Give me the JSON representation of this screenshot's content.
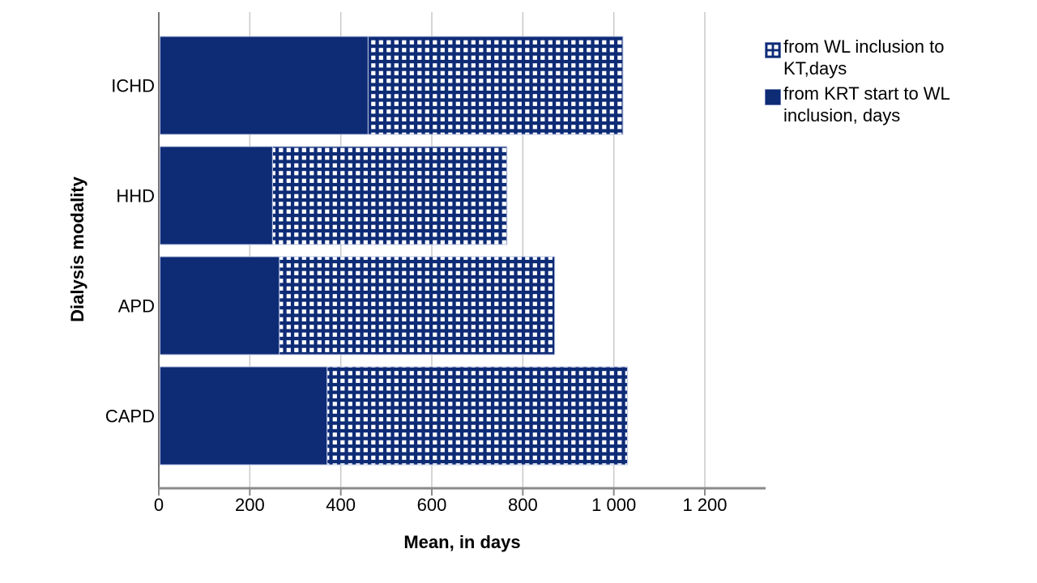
{
  "colors": {
    "bar_fill": "#0e2b76",
    "pattern_square": "#ffffff",
    "bar_border": "#bcc5e4",
    "gridline": "#c9c9c9",
    "x_axis_line": "#8a8a8a",
    "y_axis_line": "#757575",
    "text": "#000000",
    "background": "#ffffff"
  },
  "chart_data": {
    "type": "bar",
    "orientation": "horizontal",
    "stacked": true,
    "title": "",
    "xlabel": "Mean, in days",
    "ylabel": "Dialysis modality",
    "categories": [
      "ICHD",
      "HHD",
      "APD",
      "CAPD"
    ],
    "series": [
      {
        "name": "from KRT start to WL inclusion, days",
        "pattern": "solid",
        "values": [
          460,
          250,
          265,
          370
        ]
      },
      {
        "name": "from WL inclusion to KT,days",
        "pattern": "checkerboard",
        "values": [
          560,
          515,
          605,
          660
        ]
      }
    ],
    "stack_totals": [
      1020,
      765,
      870,
      1030
    ],
    "x_ticks": {
      "values": [
        0,
        200,
        400,
        600,
        800,
        1000,
        1200
      ],
      "labels": [
        "0",
        "200",
        "400",
        "600",
        "800",
        "1 000",
        "1 200"
      ]
    },
    "xlim": [
      0,
      1333
    ],
    "grid": "vertical-gridlines",
    "legend_position": "top-right"
  },
  "legend": {
    "items": [
      {
        "label": "from WL inclusion to KT,days",
        "lines": [
          "from WL inclusion to",
          "KT,days"
        ],
        "swatch": "checkerboard"
      },
      {
        "label": "from KRT start to WL inclusion, days",
        "lines": [
          "from KRT start to WL",
          "inclusion, days"
        ],
        "swatch": "solid"
      }
    ]
  }
}
